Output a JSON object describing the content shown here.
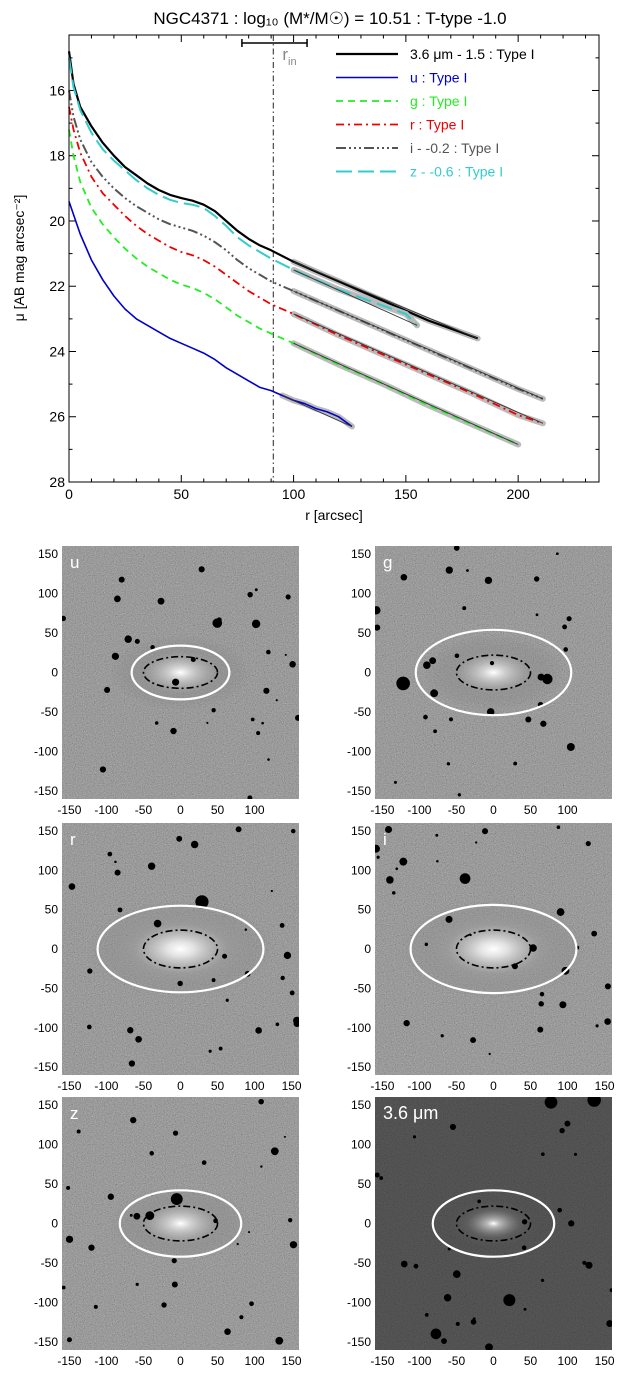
{
  "chart_data": [
    {
      "type": "line",
      "title": "NGC4371 : log₁₀ (M*/M☉) = 10.51 : T-type -1.0",
      "xlabel": "r [arcsec]",
      "ylabel": "μ [AB mag arcsec⁻²]",
      "xlim": [
        0,
        236
      ],
      "ylim": [
        28,
        14.3
      ],
      "y_inverted": true,
      "xticks": [
        0,
        50,
        100,
        150,
        200
      ],
      "yticks": [
        16,
        18,
        20,
        22,
        24,
        26,
        28
      ],
      "grid": false,
      "legend_position": "top-right",
      "r_in": {
        "label": "r",
        "label_sub": "in",
        "x": 91,
        "range": [
          77,
          106
        ]
      },
      "series": [
        {
          "name": "3.6 μm - 1.5 : Type I",
          "color": "#000000",
          "dash": "solid",
          "width": 2.2,
          "x": [
            0,
            2,
            5,
            10,
            15,
            20,
            25,
            30,
            35,
            40,
            45,
            50,
            55,
            60,
            65,
            70,
            75,
            80,
            85,
            90,
            100,
            110,
            120,
            130,
            140,
            150,
            160,
            170,
            182
          ],
          "y": [
            14.8,
            15.8,
            16.5,
            17.1,
            17.6,
            18.0,
            18.35,
            18.6,
            18.85,
            19.05,
            19.2,
            19.3,
            19.38,
            19.5,
            19.7,
            20.0,
            20.3,
            20.55,
            20.75,
            20.9,
            21.25,
            21.55,
            21.85,
            22.15,
            22.45,
            22.75,
            23.05,
            23.3,
            23.6
          ]
        },
        {
          "name": "u : Type I",
          "color": "#0000cc",
          "dash": "solid",
          "width": 1.6,
          "x": [
            0,
            2,
            5,
            10,
            15,
            20,
            25,
            30,
            35,
            40,
            45,
            50,
            55,
            60,
            65,
            70,
            75,
            80,
            85,
            90,
            95,
            100,
            105,
            110,
            115,
            120,
            126
          ],
          "y": [
            19.4,
            19.8,
            20.4,
            21.2,
            21.8,
            22.3,
            22.7,
            23.0,
            23.2,
            23.4,
            23.6,
            23.75,
            23.9,
            24.05,
            24.25,
            24.5,
            24.7,
            24.9,
            25.1,
            25.2,
            25.35,
            25.5,
            25.6,
            25.75,
            25.85,
            26.0,
            26.3
          ]
        },
        {
          "name": "g : Type I",
          "color": "#22ee22",
          "dash": "dash",
          "width": 1.8,
          "x": [
            0,
            2,
            5,
            10,
            15,
            20,
            25,
            30,
            35,
            40,
            45,
            50,
            55,
            60,
            65,
            70,
            75,
            80,
            85,
            90,
            100,
            120,
            140,
            160,
            180,
            200
          ],
          "y": [
            17.2,
            18.0,
            18.8,
            19.6,
            20.1,
            20.5,
            20.85,
            21.15,
            21.4,
            21.6,
            21.8,
            21.95,
            22.05,
            22.2,
            22.4,
            22.65,
            22.9,
            23.1,
            23.3,
            23.45,
            23.75,
            24.4,
            25.0,
            25.65,
            26.25,
            26.85
          ]
        },
        {
          "name": "r : Type I",
          "color": "#ee0000",
          "dash": "dashdot",
          "width": 1.8,
          "x": [
            0,
            2,
            5,
            10,
            15,
            20,
            25,
            30,
            35,
            40,
            45,
            50,
            55,
            60,
            65,
            70,
            75,
            80,
            85,
            90,
            100,
            120,
            140,
            160,
            180,
            200,
            211
          ],
          "y": [
            16.5,
            17.2,
            17.9,
            18.65,
            19.15,
            19.5,
            19.85,
            20.15,
            20.4,
            20.6,
            20.8,
            20.95,
            21.05,
            21.2,
            21.4,
            21.65,
            21.9,
            22.15,
            22.35,
            22.55,
            22.85,
            23.5,
            24.1,
            24.7,
            25.3,
            25.95,
            26.2
          ]
        },
        {
          "name": "i - -0.2 : Type I",
          "color": "#555555",
          "dash": "dashdotdotdot",
          "width": 2.0,
          "x": [
            0,
            2,
            5,
            10,
            15,
            20,
            25,
            30,
            35,
            40,
            45,
            50,
            55,
            60,
            65,
            70,
            75,
            80,
            85,
            90,
            100,
            120,
            140,
            160,
            180,
            200,
            211
          ],
          "y": [
            16.0,
            16.8,
            17.5,
            18.2,
            18.65,
            19.0,
            19.3,
            19.55,
            19.75,
            19.95,
            20.1,
            20.2,
            20.3,
            20.45,
            20.65,
            20.9,
            21.2,
            21.45,
            21.65,
            21.85,
            22.15,
            22.75,
            23.35,
            23.95,
            24.55,
            25.15,
            25.45
          ]
        },
        {
          "name": "z - -0.6 : Type I",
          "color": "#33cccc",
          "dash": "longdash",
          "width": 2.0,
          "x": [
            0,
            2,
            5,
            10,
            15,
            20,
            25,
            30,
            35,
            40,
            45,
            50,
            55,
            60,
            65,
            70,
            75,
            80,
            85,
            90,
            100,
            110,
            120,
            130,
            140,
            150,
            155
          ],
          "y": [
            15.0,
            15.9,
            16.6,
            17.3,
            17.8,
            18.15,
            18.45,
            18.75,
            19.0,
            19.2,
            19.35,
            19.45,
            19.5,
            19.6,
            19.85,
            20.15,
            20.5,
            20.75,
            20.95,
            21.15,
            21.5,
            21.8,
            22.1,
            22.35,
            22.6,
            22.85,
            23.2
          ]
        }
      ]
    },
    {
      "type": "image-grid",
      "axis_range": [
        -160,
        160
      ],
      "panels": [
        {
          "band": "u",
          "x_ticks": [
            "-150",
            "-100",
            "-50",
            "0",
            "50",
            "100"
          ],
          "y_ticks": [
            "150",
            "100",
            "50",
            "0",
            "-50",
            "-100",
            "-150"
          ],
          "outer_ellipse": {
            "a": 66,
            "b": 34
          },
          "inner_ellipse": {
            "a": 50,
            "b": 20
          },
          "brightness": "medium"
        },
        {
          "band": "g",
          "x_ticks": [
            "-150",
            "-100",
            "-50",
            "0",
            "50",
            "100"
          ],
          "y_ticks": [
            "150",
            "100",
            "50",
            "0",
            "-50",
            "-100",
            "-150"
          ],
          "outer_ellipse": {
            "a": 105,
            "b": 54
          },
          "inner_ellipse": {
            "a": 50,
            "b": 22
          },
          "brightness": "medium"
        },
        {
          "band": "r",
          "x_ticks": [
            "-150",
            "-100",
            "-50",
            "0",
            "50",
            "100",
            "150"
          ],
          "y_ticks": [
            "150",
            "100",
            "50",
            "0",
            "-50",
            "-100",
            "-150"
          ],
          "outer_ellipse": {
            "a": 112,
            "b": 55
          },
          "inner_ellipse": {
            "a": 50,
            "b": 24
          },
          "brightness": "bright"
        },
        {
          "band": "i",
          "x_ticks": [
            "-150",
            "-100",
            "-50",
            "0",
            "50",
            "100",
            "150"
          ],
          "y_ticks": [
            "150",
            "100",
            "50",
            "0",
            "-50",
            "-100",
            "-150"
          ],
          "outer_ellipse": {
            "a": 112,
            "b": 56
          },
          "inner_ellipse": {
            "a": 50,
            "b": 24
          },
          "brightness": "bright"
        },
        {
          "band": "z",
          "x_ticks": [
            "-150",
            "-100",
            "-50",
            "0",
            "50",
            "100",
            "150"
          ],
          "y_ticks": [
            "150",
            "100",
            "50",
            "0",
            "-50",
            "-100",
            "-150"
          ],
          "outer_ellipse": {
            "a": 82,
            "b": 42
          },
          "inner_ellipse": {
            "a": 50,
            "b": 22
          },
          "brightness": "medium"
        },
        {
          "band": "3.6 μm",
          "x_ticks": [
            "-150",
            "-100",
            "-50",
            "0",
            "50",
            "100",
            "150"
          ],
          "y_ticks": [
            "150",
            "100",
            "50",
            "0",
            "-50",
            "-100",
            "-150"
          ],
          "outer_ellipse": {
            "a": 82,
            "b": 42
          },
          "inner_ellipse": {
            "a": 50,
            "b": 22
          },
          "brightness": "dim"
        }
      ]
    }
  ]
}
